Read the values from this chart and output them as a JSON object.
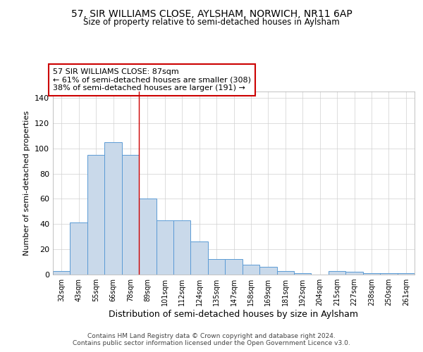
{
  "title1": "57, SIR WILLIAMS CLOSE, AYLSHAM, NORWICH, NR11 6AP",
  "title2": "Size of property relative to semi-detached houses in Aylsham",
  "xlabel": "Distribution of semi-detached houses by size in Aylsham",
  "ylabel": "Number of semi-detached properties",
  "categories": [
    "32sqm",
    "43sqm",
    "55sqm",
    "66sqm",
    "78sqm",
    "89sqm",
    "101sqm",
    "112sqm",
    "124sqm",
    "135sqm",
    "147sqm",
    "158sqm",
    "169sqm",
    "181sqm",
    "192sqm",
    "204sqm",
    "215sqm",
    "227sqm",
    "238sqm",
    "250sqm",
    "261sqm"
  ],
  "values": [
    3,
    41,
    95,
    105,
    95,
    60,
    43,
    43,
    26,
    12,
    12,
    8,
    6,
    3,
    1,
    0,
    3,
    2,
    1,
    1,
    1
  ],
  "bar_color": "#c9d9ea",
  "bar_edge_color": "#5b9bd5",
  "red_line_index": 5,
  "red_line_color": "#cc0000",
  "annotation_title": "57 SIR WILLIAMS CLOSE: 87sqm",
  "annotation_line1": "← 61% of semi-detached houses are smaller (308)",
  "annotation_line2": "38% of semi-detached houses are larger (191) →",
  "annotation_box_color": "#ffffff",
  "annotation_box_edge": "#cc0000",
  "ylim": [
    0,
    145
  ],
  "yticks": [
    0,
    20,
    40,
    60,
    80,
    100,
    120,
    140
  ],
  "footer1": "Contains HM Land Registry data © Crown copyright and database right 2024.",
  "footer2": "Contains public sector information licensed under the Open Government Licence v3.0.",
  "bg_color": "#ffffff",
  "grid_color": "#d0d0d0"
}
